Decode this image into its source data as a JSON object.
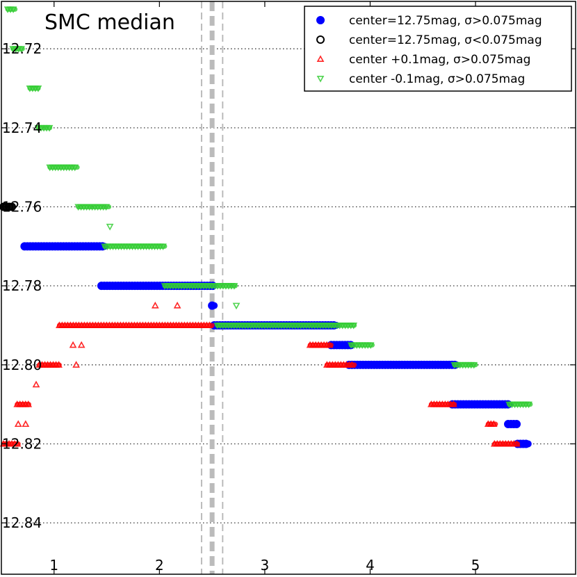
{
  "chart_data": {
    "type": "scatter",
    "title": "SMC median",
    "xlabel": "",
    "ylabel": "",
    "xlim": [
      0.5,
      5.95
    ],
    "ylim": [
      12.853,
      12.708
    ],
    "y_inverted": true,
    "grid": "horizontal dotted",
    "x_ticks": [
      1,
      2,
      3,
      4,
      5
    ],
    "x_tick_labels": [
      "1",
      "2",
      "3",
      "4",
      "5"
    ],
    "y_ticks": [
      12.72,
      12.74,
      12.76,
      12.78,
      12.8,
      12.82,
      12.84
    ],
    "y_tick_labels": [
      "12.72",
      "12.74",
      "12.76",
      "12.78",
      "12.80",
      "12.82",
      "12.84"
    ],
    "vertical_lines": [
      {
        "x": 2.4,
        "style": "dashed",
        "color": "#bbbbbb"
      },
      {
        "x": 2.5,
        "style": "dashed-thick",
        "color": "#bbbbbb"
      },
      {
        "x": 2.6,
        "style": "dashed",
        "color": "#bbbbbb"
      }
    ],
    "legend_position": "top-right",
    "series": [
      {
        "name": "center=12.75mag, σ>0.075mag",
        "marker": "circle",
        "color": "#0000ff",
        "filled": true,
        "segments": [
          {
            "x_start": 0.72,
            "x_end": 1.48,
            "y": 12.77
          },
          {
            "x_start": 1.45,
            "x_end": 2.51,
            "y": 12.78
          },
          {
            "x_start": 2.5,
            "x_end": 2.52,
            "y": 12.785
          },
          {
            "x_start": 2.52,
            "x_end": 3.68,
            "y": 12.79
          },
          {
            "x_start": 3.63,
            "x_end": 3.82,
            "y": 12.795
          },
          {
            "x_start": 3.8,
            "x_end": 4.82,
            "y": 12.8
          },
          {
            "x_start": 4.78,
            "x_end": 5.32,
            "y": 12.81
          },
          {
            "x_start": 5.31,
            "x_end": 5.39,
            "y": 12.815
          },
          {
            "x_start": 5.4,
            "x_end": 5.5,
            "y": 12.82
          }
        ]
      },
      {
        "name": "center=12.75mag, σ<0.075mag",
        "marker": "circle",
        "color": "#000000",
        "filled": false,
        "segments": [
          {
            "x_start": 0.52,
            "x_end": 0.6,
            "y": 12.76
          }
        ]
      },
      {
        "name": "center +0.1mag, σ>0.075mag",
        "marker": "triangle-up",
        "color": "#ff0000",
        "filled": false,
        "segments": [
          {
            "x_start": 0.52,
            "x_end": 0.66,
            "y": 12.82
          },
          {
            "x_start": 0.66,
            "x_end": 0.67,
            "y": 12.815
          },
          {
            "x_start": 0.73,
            "x_end": 0.74,
            "y": 12.815
          },
          {
            "x_start": 0.65,
            "x_end": 0.76,
            "y": 12.81
          },
          {
            "x_start": 0.83,
            "x_end": 0.84,
            "y": 12.805
          },
          {
            "x_start": 0.86,
            "x_end": 1.05,
            "y": 12.8
          },
          {
            "x_start": 1.21,
            "x_end": 1.22,
            "y": 12.8
          },
          {
            "x_start": 1.18,
            "x_end": 1.19,
            "y": 12.795
          },
          {
            "x_start": 1.26,
            "x_end": 1.27,
            "y": 12.795
          },
          {
            "x_start": 1.05,
            "x_end": 2.5,
            "y": 12.79
          },
          {
            "x_start": 1.96,
            "x_end": 1.97,
            "y": 12.785
          },
          {
            "x_start": 2.17,
            "x_end": 2.18,
            "y": 12.785
          },
          {
            "x_start": 3.43,
            "x_end": 3.63,
            "y": 12.795
          },
          {
            "x_start": 3.59,
            "x_end": 3.85,
            "y": 12.8
          },
          {
            "x_start": 4.58,
            "x_end": 4.8,
            "y": 12.81
          },
          {
            "x_start": 5.12,
            "x_end": 5.19,
            "y": 12.815
          },
          {
            "x_start": 5.18,
            "x_end": 5.4,
            "y": 12.82
          }
        ]
      },
      {
        "name": "center -0.1mag, σ>0.075mag",
        "marker": "triangle-down",
        "color": "#33cc33",
        "filled": false,
        "segments": [
          {
            "x_start": 0.56,
            "x_end": 0.63,
            "y": 12.71
          },
          {
            "x_start": 0.61,
            "x_end": 0.7,
            "y": 12.72
          },
          {
            "x_start": 0.77,
            "x_end": 0.85,
            "y": 12.73
          },
          {
            "x_start": 0.85,
            "x_end": 0.96,
            "y": 12.74
          },
          {
            "x_start": 0.96,
            "x_end": 1.22,
            "y": 12.75
          },
          {
            "x_start": 1.23,
            "x_end": 1.52,
            "y": 12.76
          },
          {
            "x_start": 1.53,
            "x_end": 1.54,
            "y": 12.765
          },
          {
            "x_start": 1.48,
            "x_end": 2.05,
            "y": 12.77
          },
          {
            "x_start": 2.05,
            "x_end": 2.72,
            "y": 12.78
          },
          {
            "x_start": 2.73,
            "x_end": 2.74,
            "y": 12.785
          },
          {
            "x_start": 2.55,
            "x_end": 3.85,
            "y": 12.79
          },
          {
            "x_start": 3.82,
            "x_end": 4.02,
            "y": 12.795
          },
          {
            "x_start": 4.8,
            "x_end": 5.0,
            "y": 12.8
          },
          {
            "x_start": 5.32,
            "x_end": 5.52,
            "y": 12.81
          }
        ]
      }
    ]
  }
}
